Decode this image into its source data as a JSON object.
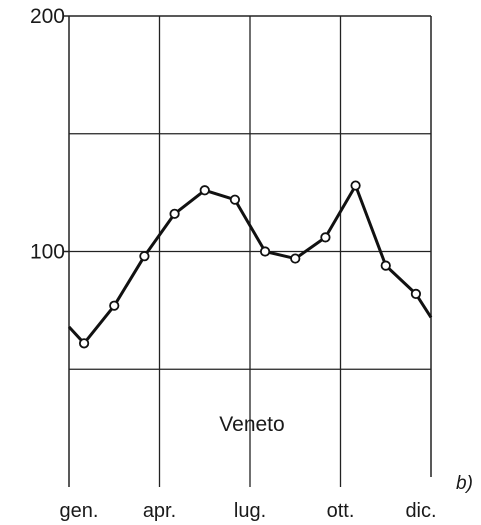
{
  "chart_data": {
    "type": "line",
    "categories_labeled": [
      "gen.",
      "apr.",
      "lug.",
      "ott.",
      "dic."
    ],
    "y_ticks": [
      "200",
      "100"
    ],
    "ylim": [
      0,
      200
    ],
    "grid": true,
    "annotation": "Veneto",
    "panel_label": "b)",
    "series": [
      {
        "points": [
          {
            "x": 0.0,
            "y": 68
          },
          {
            "x": 0.5,
            "y": 61
          },
          {
            "x": 1.5,
            "y": 77
          },
          {
            "x": 2.5,
            "y": 98
          },
          {
            "x": 3.5,
            "y": 116
          },
          {
            "x": 4.5,
            "y": 126
          },
          {
            "x": 5.5,
            "y": 122
          },
          {
            "x": 6.5,
            "y": 100
          },
          {
            "x": 7.5,
            "y": 97
          },
          {
            "x": 8.5,
            "y": 106
          },
          {
            "x": 9.5,
            "y": 128
          },
          {
            "x": 10.5,
            "y": 94
          },
          {
            "x": 11.5,
            "y": 82
          },
          {
            "x": 12.0,
            "y": 72
          }
        ],
        "markers_at": [
          1,
          2,
          3,
          4,
          5,
          6,
          7,
          8,
          9,
          10,
          11,
          12
        ],
        "color": "#111111"
      }
    ],
    "colors": {
      "line": "#111111",
      "grid": "#222222",
      "marker_fill": "#ffffff"
    }
  }
}
